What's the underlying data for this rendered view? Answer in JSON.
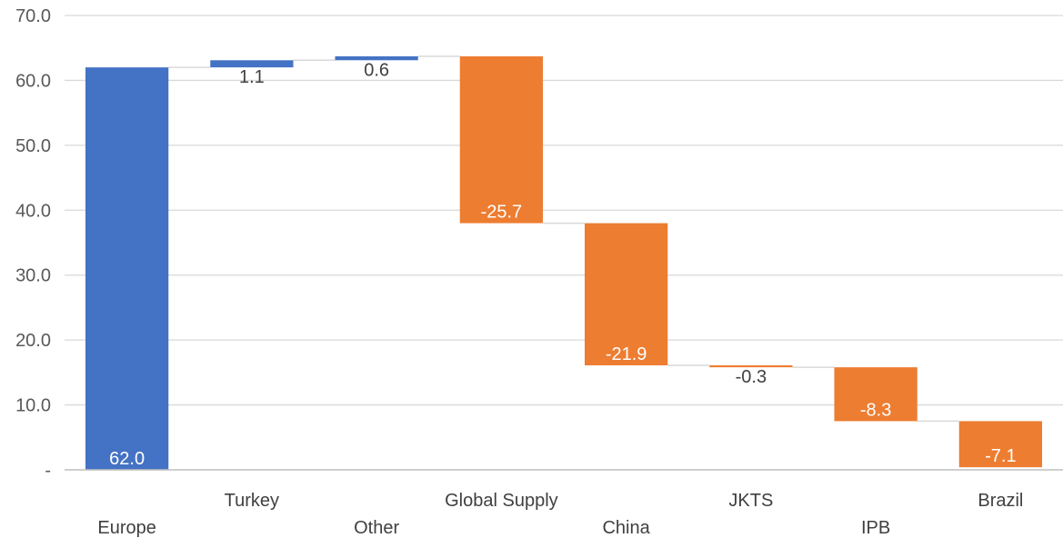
{
  "chart_data": {
    "type": "waterfall",
    "title": "",
    "xlabel": "",
    "ylabel": "",
    "ylim": [
      0,
      70
    ],
    "yticks": [
      0,
      10,
      20,
      30,
      40,
      50,
      60,
      70
    ],
    "ytick_labels": [
      "-",
      "10.0",
      "20.0",
      "30.0",
      "40.0",
      "50.0",
      "60.0",
      "70.0"
    ],
    "grid": true,
    "legend": "none",
    "categories": [
      "Europe",
      "Turkey",
      "Other",
      "Global Supply",
      "China",
      "JKTS",
      "IPB",
      "Brazil"
    ],
    "values": [
      62.0,
      1.1,
      0.6,
      -25.7,
      -21.9,
      -0.3,
      -8.3,
      -7.1
    ],
    "labels": [
      "62.0",
      "1.1",
      "0.6",
      "-25.7",
      "-21.9",
      "-0.3",
      "-8.3",
      "-7.1"
    ],
    "colors": {
      "increase": "#4472C4",
      "decrease": "#ED7D31",
      "grid": "#D9D9D9",
      "connector": "#D9D9D9"
    }
  }
}
